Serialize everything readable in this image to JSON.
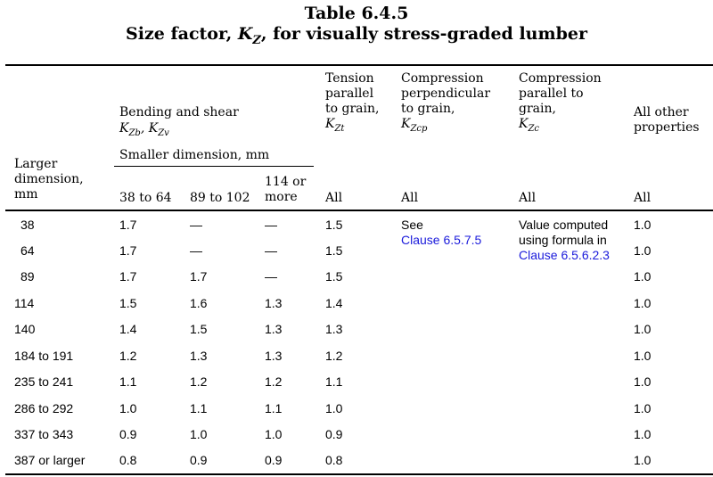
{
  "table": {
    "number": "Table 6.4.5",
    "title_prefix": "Size factor, ",
    "title_symbol": "K",
    "title_symbol_sub": "Z",
    "title_suffix": ", for visually stress-graded lumber"
  },
  "headers": {
    "larger_dimension": "Larger\ndimension,\nmm",
    "bending_shear": "Bending and shear",
    "bending_symbols": "K_Zb, K_Zv",
    "smaller_dimension": "Smaller dimension, mm",
    "tension": "Tension\nparallel\nto grain,",
    "tension_symbol": "K_Zt",
    "comp_perp": "Compression\nperpendicular\nto grain,",
    "comp_perp_symbol": "K_Zcp",
    "comp_par": "Compression\nparallel to\ngrain,",
    "comp_par_symbol": "K_Zc",
    "other": "All other\nproperties",
    "sub_38_64": "38 to 64",
    "sub_89_102": "89 to 102",
    "sub_114": "114 or\nmore",
    "all_tension": "All",
    "all_comp_perp": "All",
    "all_comp_par": "All",
    "all_other": "All"
  },
  "rows": [
    {
      "larger": "38",
      "b1": "1.7",
      "b2": "—",
      "b3": "—",
      "tension": "1.5",
      "other": "1.0"
    },
    {
      "larger": "64",
      "b1": "1.7",
      "b2": "—",
      "b3": "—",
      "tension": "1.5",
      "other": "1.0"
    },
    {
      "larger": "89",
      "b1": "1.7",
      "b2": "1.7",
      "b3": "—",
      "tension": "1.5",
      "other": "1.0"
    },
    {
      "larger": "114",
      "b1": "1.5",
      "b2": "1.6",
      "b3": "1.3",
      "tension": "1.4",
      "other": "1.0"
    },
    {
      "larger": "140",
      "b1": "1.4",
      "b2": "1.5",
      "b3": "1.3",
      "tension": "1.3",
      "other": "1.0"
    },
    {
      "larger": "184 to 191",
      "b1": "1.2",
      "b2": "1.3",
      "b3": "1.3",
      "tension": "1.2",
      "other": "1.0"
    },
    {
      "larger": "235 to 241",
      "b1": "1.1",
      "b2": "1.2",
      "b3": "1.2",
      "tension": "1.1",
      "other": "1.0"
    },
    {
      "larger": "286 to 292",
      "b1": "1.0",
      "b2": "1.1",
      "b3": "1.1",
      "tension": "1.0",
      "other": "1.0"
    },
    {
      "larger": "337 to 343",
      "b1": "0.9",
      "b2": "1.0",
      "b3": "1.0",
      "tension": "0.9",
      "other": "1.0"
    },
    {
      "larger": "387 or larger",
      "b1": "0.8",
      "b2": "0.9",
      "b3": "0.9",
      "tension": "0.8",
      "other": "1.0"
    }
  ],
  "notes": {
    "comp_perp_see": "See",
    "comp_perp_link": "Clause 6.5.7.5",
    "comp_par_text": "Value computed\nusing formula in",
    "comp_par_link": "Clause 6.5.6.2.3"
  },
  "colors": {
    "link": "#1a1adb"
  }
}
